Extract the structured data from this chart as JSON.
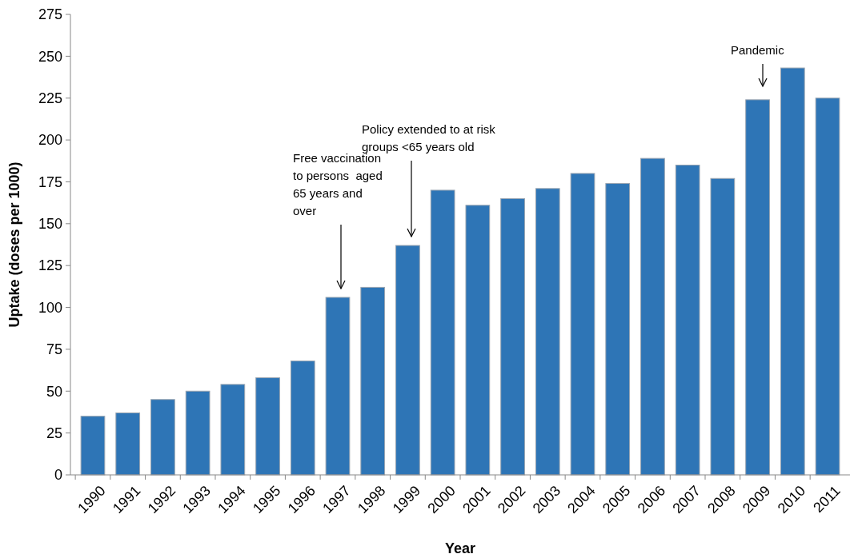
{
  "chart_data": {
    "type": "bar",
    "xlabel": "Year",
    "ylabel": "Uptake (doses per 1000)",
    "categories": [
      "1990",
      "1991",
      "1992",
      "1993",
      "1994",
      "1995",
      "1996",
      "1997",
      "1998",
      "1999",
      "2000",
      "2001",
      "2002",
      "2003",
      "2004",
      "2005",
      "2006",
      "2007",
      "2008",
      "2009",
      "2010",
      "2011"
    ],
    "values": [
      35,
      37,
      45,
      50,
      54,
      58,
      68,
      106,
      112,
      137,
      170,
      161,
      165,
      171,
      180,
      174,
      189,
      185,
      177,
      224,
      243,
      225
    ],
    "color": "#2e75b6",
    "ylim": [
      0,
      275
    ],
    "yticks": [
      0,
      25,
      50,
      75,
      100,
      125,
      150,
      175,
      200,
      225,
      250,
      275
    ],
    "grid": false,
    "annotations": [
      "Free vaccination\nto persons  aged\n65 years and\nover",
      "Policy extended to at risk\ngroups <65 years old",
      "Pandemic"
    ]
  }
}
